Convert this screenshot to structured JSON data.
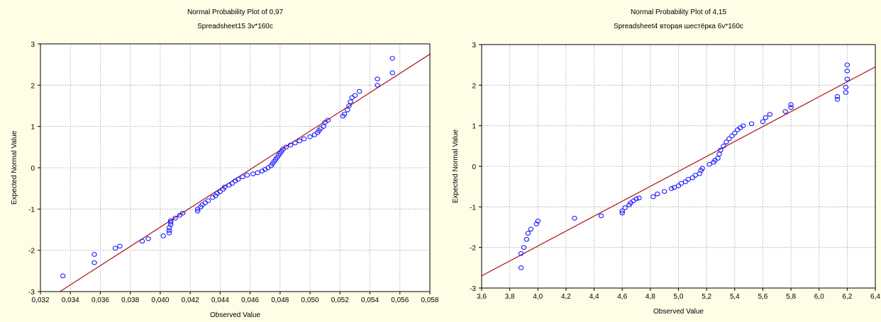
{
  "chart_data": [
    {
      "type": "scatter",
      "title": "Normal Probability Plot of 0,97",
      "subtitle": "Spreadsheet15 3v*160c",
      "xlabel": "Observed Value",
      "ylabel": "Expected Normal Value",
      "xlim": [
        0.032,
        0.058
      ],
      "ylim": [
        -3,
        3
      ],
      "xticks": [
        "0,032",
        "0,034",
        "0,036",
        "0,038",
        "0,040",
        "0,042",
        "0,044",
        "0,046",
        "0,048",
        "0,050",
        "0,052",
        "0,054",
        "0,056",
        "0,058"
      ],
      "yticks": [
        "-3",
        "-2",
        "-1",
        "0",
        "1",
        "2",
        "3"
      ],
      "grid": true,
      "point_color": "#1a1aff",
      "line_color": "#b22222",
      "fit_line": [
        [
          0.0333,
          -3.0
        ],
        [
          0.058,
          2.75
        ]
      ],
      "points": [
        [
          0.0335,
          -2.62
        ],
        [
          0.0356,
          -2.3
        ],
        [
          0.0356,
          -2.1
        ],
        [
          0.037,
          -1.95
        ],
        [
          0.0373,
          -1.9
        ],
        [
          0.0388,
          -1.78
        ],
        [
          0.0392,
          -1.72
        ],
        [
          0.0402,
          -1.65
        ],
        [
          0.0406,
          -1.58
        ],
        [
          0.0406,
          -1.52
        ],
        [
          0.0406,
          -1.45
        ],
        [
          0.0407,
          -1.38
        ],
        [
          0.0407,
          -1.32
        ],
        [
          0.0407,
          -1.28
        ],
        [
          0.041,
          -1.22
        ],
        [
          0.0413,
          -1.15
        ],
        [
          0.0415,
          -1.1
        ],
        [
          0.0425,
          -1.05
        ],
        [
          0.0425,
          -1.0
        ],
        [
          0.0427,
          -0.95
        ],
        [
          0.0428,
          -0.9
        ],
        [
          0.043,
          -0.85
        ],
        [
          0.0432,
          -0.8
        ],
        [
          0.0435,
          -0.72
        ],
        [
          0.0437,
          -0.68
        ],
        [
          0.0438,
          -0.62
        ],
        [
          0.044,
          -0.58
        ],
        [
          0.0442,
          -0.52
        ],
        [
          0.0443,
          -0.47
        ],
        [
          0.0446,
          -0.42
        ],
        [
          0.0448,
          -0.38
        ],
        [
          0.045,
          -0.32
        ],
        [
          0.0452,
          -0.28
        ],
        [
          0.0455,
          -0.22
        ],
        [
          0.0458,
          -0.18
        ],
        [
          0.0462,
          -0.15
        ],
        [
          0.0465,
          -0.12
        ],
        [
          0.0468,
          -0.08
        ],
        [
          0.047,
          -0.04
        ],
        [
          0.0472,
          0.0
        ],
        [
          0.0474,
          0.05
        ],
        [
          0.0475,
          0.1
        ],
        [
          0.0476,
          0.15
        ],
        [
          0.0477,
          0.2
        ],
        [
          0.0478,
          0.25
        ],
        [
          0.0479,
          0.3
        ],
        [
          0.048,
          0.35
        ],
        [
          0.0481,
          0.4
        ],
        [
          0.0482,
          0.45
        ],
        [
          0.0484,
          0.5
        ],
        [
          0.0487,
          0.55
        ],
        [
          0.049,
          0.6
        ],
        [
          0.0493,
          0.65
        ],
        [
          0.0496,
          0.7
        ],
        [
          0.05,
          0.75
        ],
        [
          0.0503,
          0.8
        ],
        [
          0.0505,
          0.85
        ],
        [
          0.0506,
          0.9
        ],
        [
          0.0507,
          0.95
        ],
        [
          0.0509,
          1.0
        ],
        [
          0.051,
          1.1
        ],
        [
          0.0512,
          1.15
        ],
        [
          0.0522,
          1.25
        ],
        [
          0.0523,
          1.3
        ],
        [
          0.0525,
          1.4
        ],
        [
          0.0526,
          1.5
        ],
        [
          0.0527,
          1.6
        ],
        [
          0.0528,
          1.7
        ],
        [
          0.053,
          1.75
        ],
        [
          0.0533,
          1.85
        ],
        [
          0.0545,
          2.0
        ],
        [
          0.0545,
          2.15
        ],
        [
          0.0555,
          2.3
        ],
        [
          0.0555,
          2.65
        ]
      ]
    },
    {
      "type": "scatter",
      "title": "Normal Probability Plot of 4,15",
      "subtitle": "Spreadsheet4 вторая шестёрка 6v*160c",
      "xlabel": "Observed Value",
      "ylabel": "Expected Normal Value",
      "xlim": [
        3.6,
        6.4
      ],
      "ylim": [
        -3,
        3
      ],
      "xticks": [
        "3,6",
        "3,8",
        "4,0",
        "4,2",
        "4,4",
        "4,6",
        "4,8",
        "5,0",
        "5,2",
        "5,4",
        "5,6",
        "5,8",
        "6,0",
        "6,2",
        "6,4"
      ],
      "yticks": [
        "-3",
        "-2",
        "-1",
        "0",
        "1",
        "2",
        "3"
      ],
      "grid": true,
      "point_color": "#1a1aff",
      "line_color": "#b22222",
      "fit_line": [
        [
          3.6,
          -2.7
        ],
        [
          6.4,
          2.45
        ]
      ],
      "points": [
        [
          3.88,
          -2.5
        ],
        [
          3.88,
          -2.15
        ],
        [
          3.9,
          -2.0
        ],
        [
          3.92,
          -1.8
        ],
        [
          3.93,
          -1.65
        ],
        [
          3.95,
          -1.55
        ],
        [
          3.99,
          -1.42
        ],
        [
          4.0,
          -1.35
        ],
        [
          4.26,
          -1.28
        ],
        [
          4.45,
          -1.22
        ],
        [
          4.6,
          -1.15
        ],
        [
          4.6,
          -1.1
        ],
        [
          4.62,
          -1.02
        ],
        [
          4.65,
          -0.95
        ],
        [
          4.66,
          -0.9
        ],
        [
          4.68,
          -0.85
        ],
        [
          4.7,
          -0.8
        ],
        [
          4.72,
          -0.78
        ],
        [
          4.82,
          -0.75
        ],
        [
          4.85,
          -0.68
        ],
        [
          4.9,
          -0.62
        ],
        [
          4.95,
          -0.55
        ],
        [
          4.97,
          -0.52
        ],
        [
          5.0,
          -0.48
        ],
        [
          5.02,
          -0.42
        ],
        [
          5.05,
          -0.38
        ],
        [
          5.07,
          -0.32
        ],
        [
          5.1,
          -0.28
        ],
        [
          5.12,
          -0.22
        ],
        [
          5.15,
          -0.18
        ],
        [
          5.16,
          -0.1
        ],
        [
          5.17,
          -0.05
        ],
        [
          5.22,
          0.05
        ],
        [
          5.25,
          0.1
        ],
        [
          5.26,
          0.15
        ],
        [
          5.28,
          0.2
        ],
        [
          5.29,
          0.3
        ],
        [
          5.3,
          0.4
        ],
        [
          5.32,
          0.5
        ],
        [
          5.34,
          0.6
        ],
        [
          5.36,
          0.68
        ],
        [
          5.38,
          0.75
        ],
        [
          5.4,
          0.82
        ],
        [
          5.42,
          0.9
        ],
        [
          5.44,
          0.95
        ],
        [
          5.46,
          1.0
        ],
        [
          5.52,
          1.05
        ],
        [
          5.6,
          1.1
        ],
        [
          5.62,
          1.2
        ],
        [
          5.65,
          1.28
        ],
        [
          5.76,
          1.35
        ],
        [
          5.8,
          1.45
        ],
        [
          5.8,
          1.52
        ],
        [
          6.13,
          1.65
        ],
        [
          6.13,
          1.72
        ],
        [
          6.19,
          1.82
        ],
        [
          6.19,
          1.95
        ],
        [
          6.2,
          2.15
        ],
        [
          6.2,
          2.35
        ],
        [
          6.2,
          2.5
        ]
      ]
    }
  ]
}
